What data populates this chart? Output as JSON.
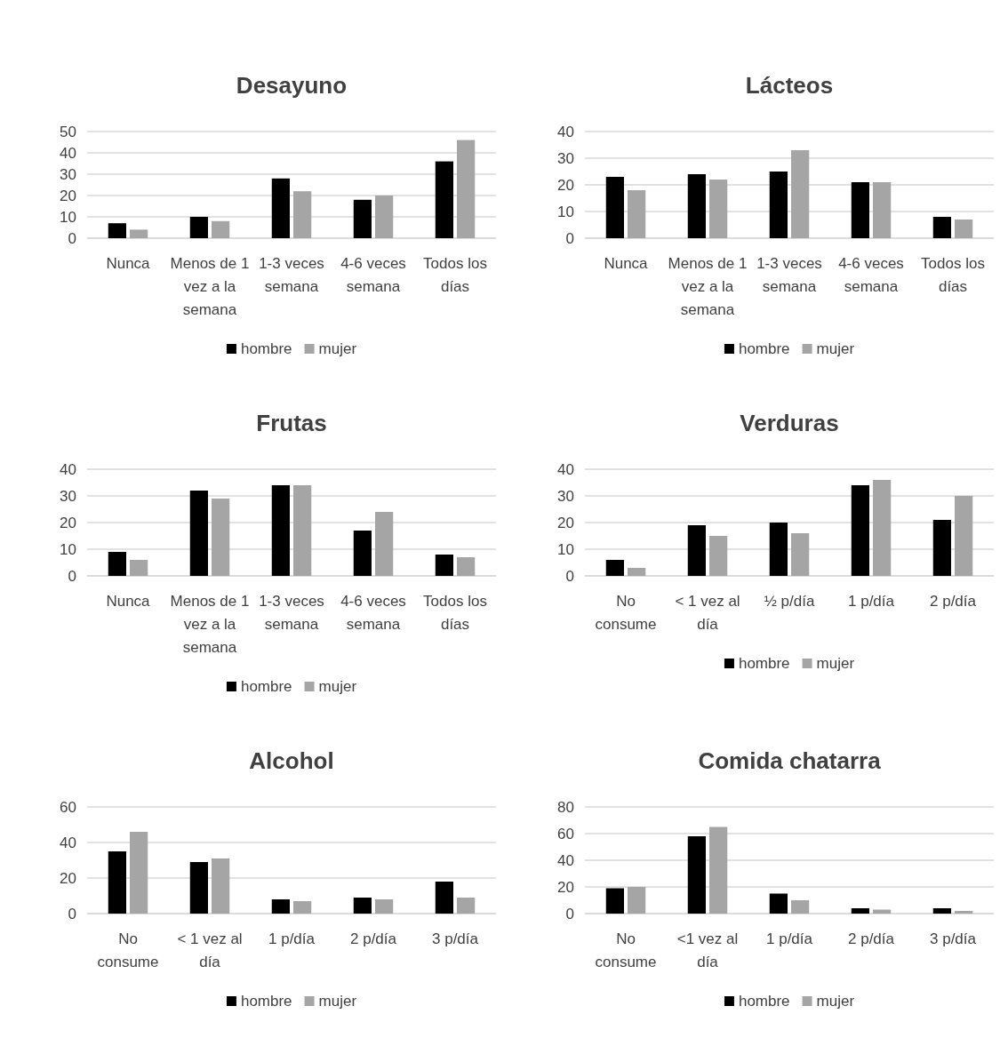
{
  "chart_data": [
    {
      "type": "bar",
      "title": "Desayuno",
      "categories": [
        "Nunca",
        "Menos de 1 vez a la semana",
        "1-3 veces semana",
        "4-6 veces semana",
        "Todos los días"
      ],
      "series": [
        {
          "name": "hombre",
          "color": "#000000",
          "values": [
            7,
            10,
            28,
            18,
            36
          ]
        },
        {
          "name": "mujer",
          "color": "#a5a5a5",
          "values": [
            4,
            8,
            22,
            20,
            46
          ]
        }
      ],
      "ylim": [
        0,
        50
      ],
      "yticks": [
        0,
        10,
        20,
        30,
        40,
        50
      ],
      "grid": "y",
      "legend": "bottom"
    },
    {
      "type": "bar",
      "title": "Lácteos",
      "categories": [
        "Nunca",
        "Menos de 1 vez a la semana",
        "1-3 veces semana",
        "4-6 veces semana",
        "Todos los días"
      ],
      "series": [
        {
          "name": "hombre",
          "color": "#000000",
          "values": [
            23,
            24,
            25,
            21,
            8
          ]
        },
        {
          "name": "mujer",
          "color": "#a5a5a5",
          "values": [
            18,
            22,
            33,
            21,
            7
          ]
        }
      ],
      "ylim": [
        0,
        40
      ],
      "yticks": [
        0,
        10,
        20,
        30,
        40
      ],
      "grid": "y",
      "legend": "bottom"
    },
    {
      "type": "bar",
      "title": "Frutas",
      "categories": [
        "Nunca",
        "Menos de 1 vez a la semana",
        "1-3 veces semana",
        "4-6 veces semana",
        "Todos los días"
      ],
      "series": [
        {
          "name": "hombre",
          "color": "#000000",
          "values": [
            9,
            32,
            34,
            17,
            8
          ]
        },
        {
          "name": "mujer",
          "color": "#a5a5a5",
          "values": [
            6,
            29,
            34,
            24,
            7
          ]
        }
      ],
      "ylim": [
        0,
        40
      ],
      "yticks": [
        0,
        10,
        20,
        30,
        40
      ],
      "grid": "y",
      "legend": "bottom"
    },
    {
      "type": "bar",
      "title": "Verduras",
      "categories": [
        "No consume",
        "< 1 vez al día",
        "½ p/día",
        "1 p/día",
        "2 p/día"
      ],
      "series": [
        {
          "name": "hombre",
          "color": "#000000",
          "values": [
            6,
            19,
            20,
            34,
            21
          ]
        },
        {
          "name": "mujer",
          "color": "#a5a5a5",
          "values": [
            3,
            15,
            16,
            36,
            30
          ]
        }
      ],
      "ylim": [
        0,
        40
      ],
      "yticks": [
        0,
        10,
        20,
        30,
        40
      ],
      "grid": "y",
      "legend": "bottom"
    },
    {
      "type": "bar",
      "title": "Alcohol",
      "categories": [
        "No consume",
        "< 1 vez al día",
        "1 p/día",
        "2 p/día",
        "3 p/día"
      ],
      "series": [
        {
          "name": "hombre",
          "color": "#000000",
          "values": [
            35,
            29,
            8,
            9,
            18
          ]
        },
        {
          "name": "mujer",
          "color": "#a5a5a5",
          "values": [
            46,
            31,
            7,
            8,
            9
          ]
        }
      ],
      "ylim": [
        0,
        60
      ],
      "yticks": [
        0,
        20,
        40,
        60
      ],
      "grid": "y",
      "legend": "bottom"
    },
    {
      "type": "bar",
      "title": "Comida chatarra",
      "categories": [
        "No consume",
        "<1 vez al día",
        "1 p/día",
        "2 p/día",
        "3 p/día"
      ],
      "series": [
        {
          "name": "hombre",
          "color": "#000000",
          "values": [
            19,
            58,
            15,
            4,
            4
          ]
        },
        {
          "name": "mujer",
          "color": "#a5a5a5",
          "values": [
            20,
            65,
            10,
            3,
            2
          ]
        }
      ],
      "ylim": [
        0,
        80
      ],
      "yticks": [
        0,
        20,
        40,
        60,
        80
      ],
      "grid": "y",
      "legend": "bottom"
    }
  ]
}
